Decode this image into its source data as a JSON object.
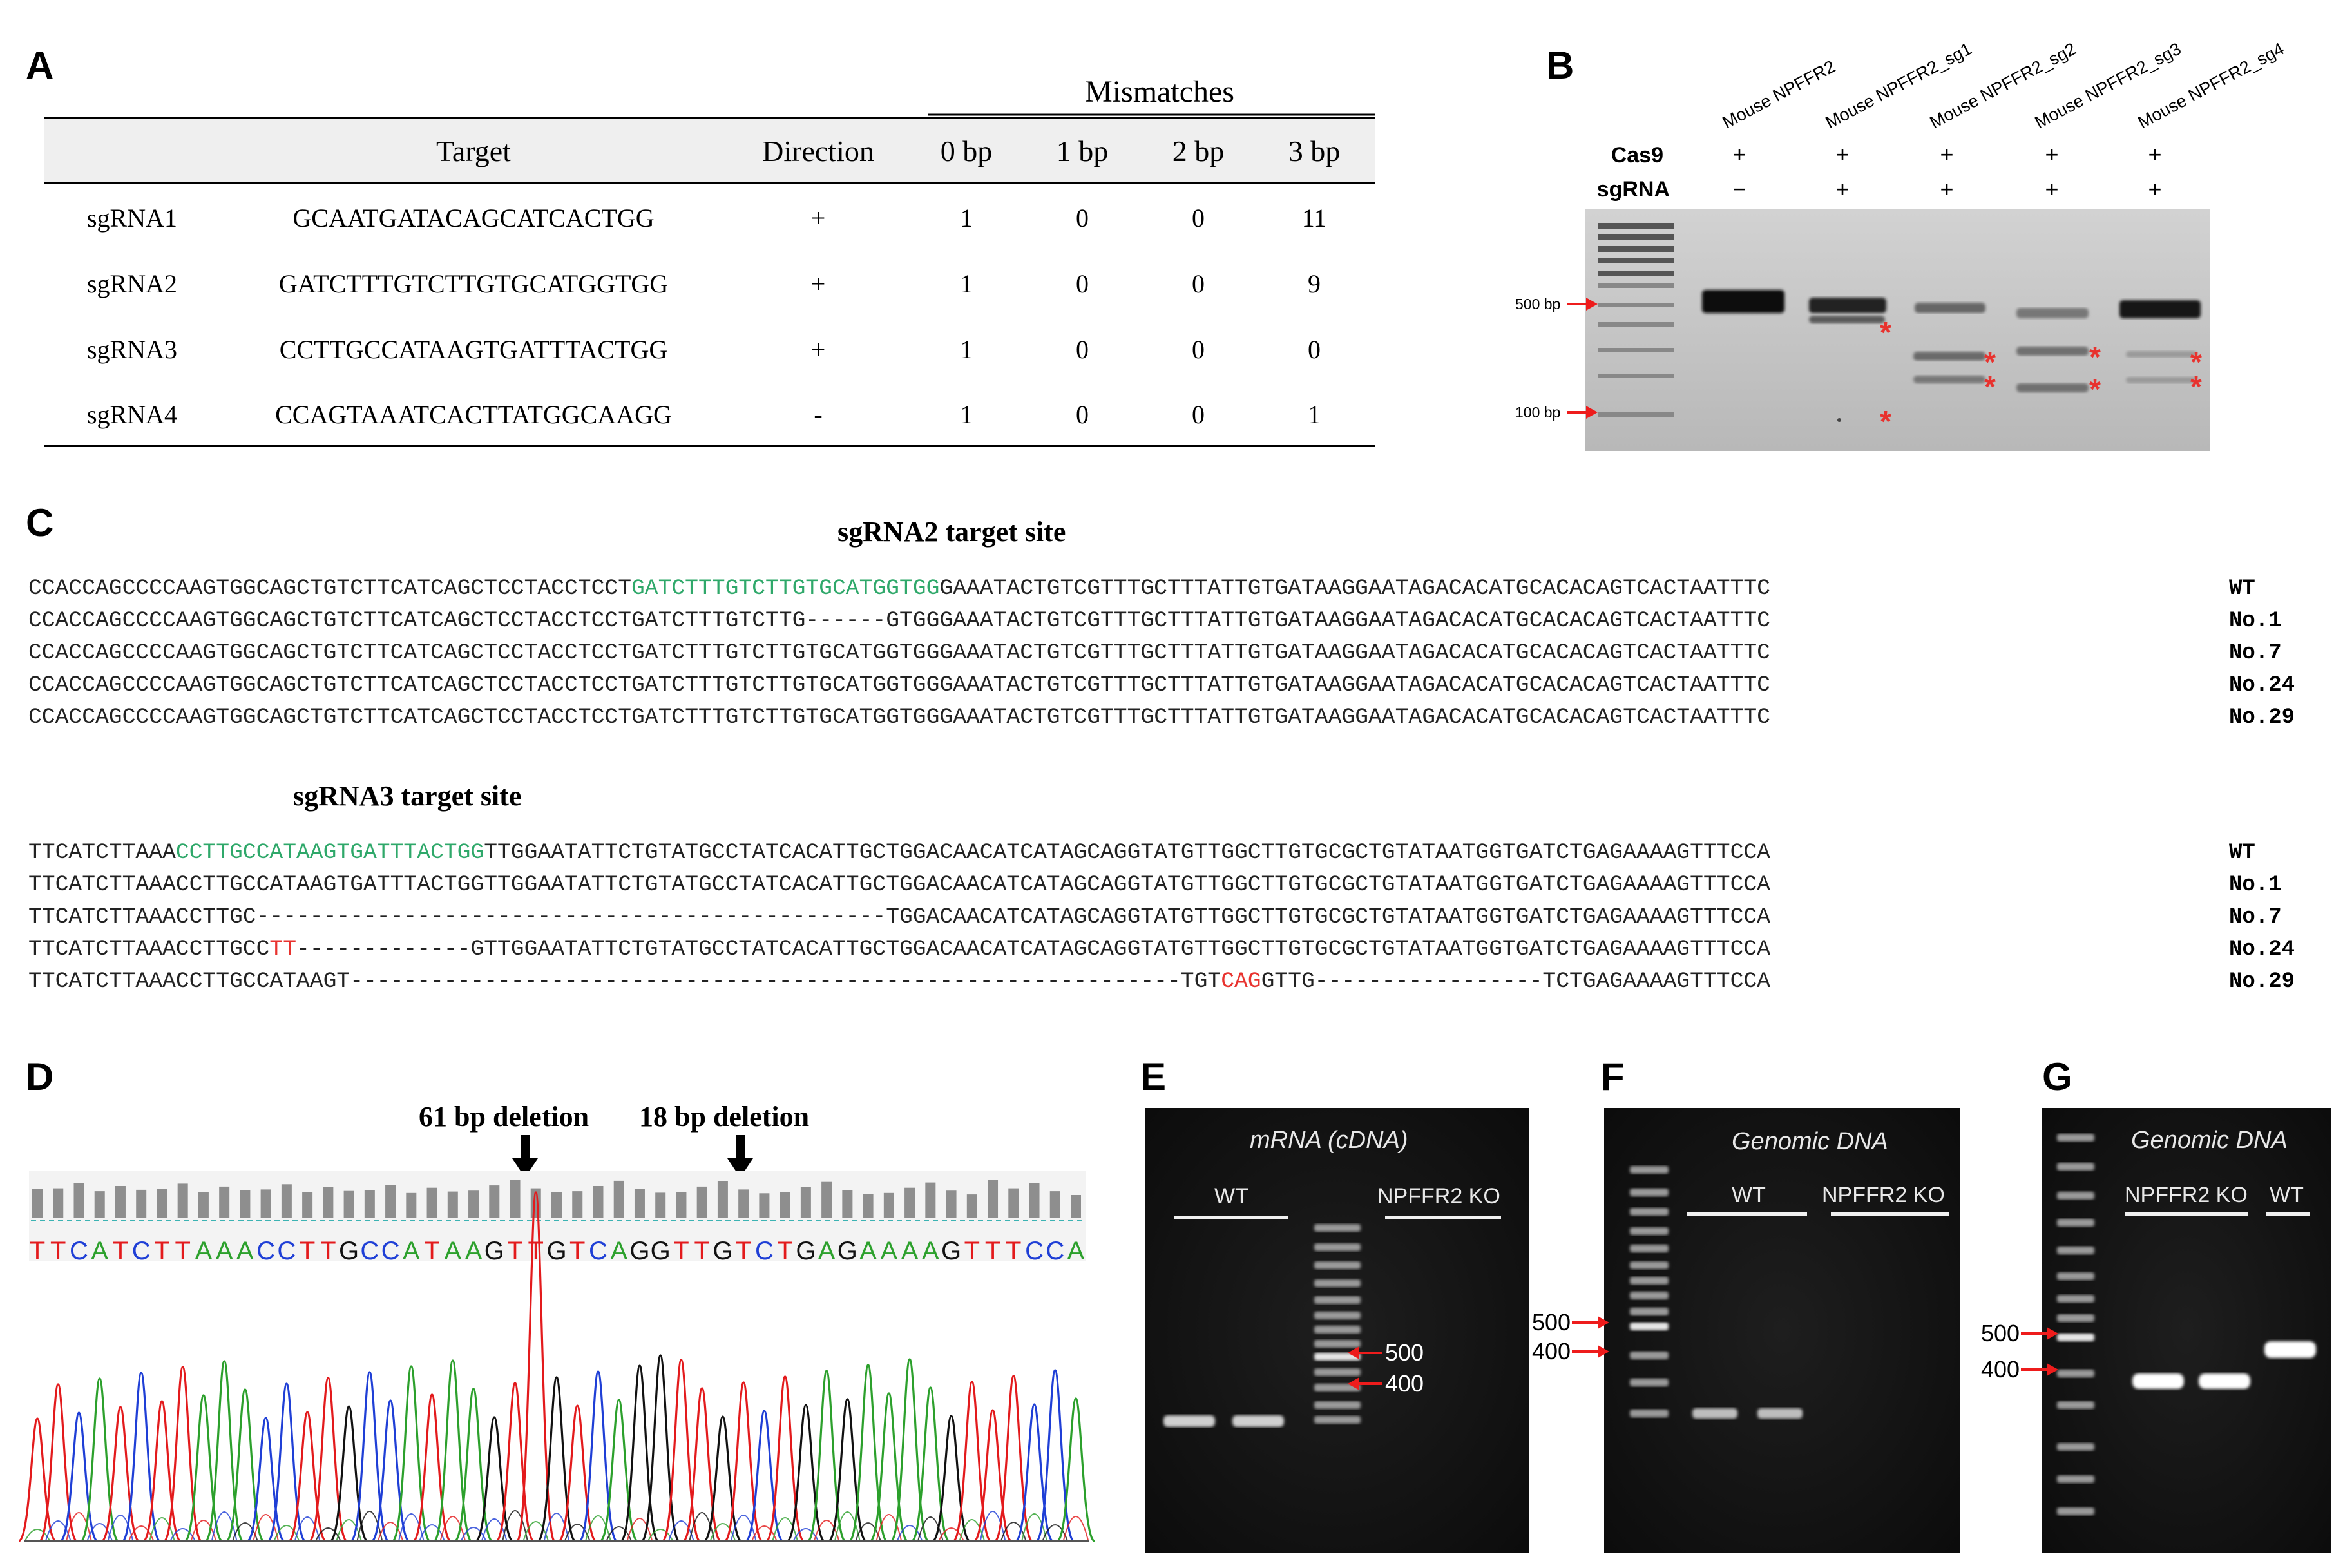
{
  "panels": {
    "A": "A",
    "B": "B",
    "C": "C",
    "D": "D",
    "E": "E",
    "F": "F",
    "G": "G"
  },
  "table": {
    "group_header": "Mismatches",
    "headers": [
      "",
      "Target",
      "Direction",
      "0 bp",
      "1 bp",
      "2 bp",
      "3 bp"
    ],
    "rows": [
      [
        "sgRNA1",
        "GCAATGATACAGCATCACTGG",
        "+",
        "1",
        "0",
        "0",
        "11"
      ],
      [
        "sgRNA2",
        "GATCTTTGTCTTGTGCATGGTGG",
        "+",
        "1",
        "0",
        "0",
        "9"
      ],
      [
        "sgRNA3",
        "CCTTGCCATAAGTGATTTACTGG",
        "+",
        "1",
        "0",
        "0",
        "0"
      ],
      [
        "sgRNA4",
        "CCAGTAAATCACTTATGGCAAGG",
        "-",
        "1",
        "0",
        "0",
        "1"
      ]
    ]
  },
  "gelB": {
    "lanes": [
      "Mouse NPFFR2",
      "Mouse NPFFR2_sg1",
      "Mouse NPFFR2_sg2",
      "Mouse NPFFR2_sg3",
      "Mouse NPFFR2_sg4"
    ],
    "cas9_label": "Cas9",
    "sgrna_label": "sgRNA",
    "cas9": [
      "+",
      "+",
      "+",
      "+",
      "+"
    ],
    "sgrna": [
      "−",
      "+",
      "+",
      "+",
      "+"
    ],
    "markers": [
      "500 bp",
      "100 bp"
    ],
    "asterisk": "*"
  },
  "seq2": {
    "title": "sgRNA2 target site",
    "wt": {
      "pre": "CCACCAGCCCCAAGTGGCAGCTGTCTTCATCAGCTCCTACCTCCT",
      "green": "GATCTTTGTCTTGTGCATGGTGG",
      "post": "GAAATACTGTCGTTTGCTTTATTGTGATAAGGAATAGACACATGCACACAGTCACTAATTTC"
    },
    "rows": [
      "CCACCAGCCCCAAGTGGCAGCTGTCTTCATCAGCTCCTACCTCCTGATCTTTGTCTTG------GTGGGAAATACTGTCGTTTGCTTTATTGTGATAAGGAATAGACACATGCACACAGTCACTAATTTC",
      "CCACCAGCCCCAAGTGGCAGCTGTCTTCATCAGCTCCTACCTCCTGATCTTTGTCTTGTGCATGGTGGGAAATACTGTCGTTTGCTTTATTGTGATAAGGAATAGACACATGCACACAGTCACTAATTTC",
      "CCACCAGCCCCAAGTGGCAGCTGTCTTCATCAGCTCCTACCTCCTGATCTTTGTCTTGTGCATGGTGGGAAATACTGTCGTTTGCTTTATTGTGATAAGGAATAGACACATGCACACAGTCACTAATTTC",
      "CCACCAGCCCCAAGTGGCAGCTGTCTTCATCAGCTCCTACCTCCTGATCTTTGTCTTGTGCATGGTGGGAAATACTGTCGTTTGCTTTATTGTGATAAGGAATAGACACATGCACACAGTCACTAATTTC"
    ],
    "labels": [
      "WT",
      "No.1",
      "No.7",
      "No.24",
      "No.29"
    ]
  },
  "seq3": {
    "title": "sgRNA3 target site",
    "wt": {
      "pre": "TTCATCTTAAA",
      "green": "CCTTGCCATAAGTGATTTACTGG",
      "post": "TTGGAATATTCTGTATGCCTATCACATTGCTGGACAACATCATAGCAGGTATGTTGGCTTGTGCGCTGTATAATGGTGATCTGAGAAAAGTTTCCA"
    },
    "no1": "TTCATCTTAAACCTTGCCATAAGTGATTTACTGGTTGGAATATTCTGTATGCCTATCACATTGCTGGACAACATCATAGCAGGTATGTTGGCTTGTGCGCTGTATAATGGTGATCTGAGAAAAGTTTCCA",
    "no7": "TTCATCTTAAACCTTGC-----------------------------------------------TGGACAACATCATAGCAGGTATGTTGGCTTGTGCGCTGTATAATGGTGATCTGAGAAAAGTTTCCA",
    "no24": {
      "a": "TTCATCTTAAACCTTGCC",
      "red": "TT",
      "b": "-------------GTTGGAATATTCTGTATGCCTATCACATTGCTGGACAACATCATAGCAGGTATGTTGGCTTGTGCGCTGTATAATGGTGATCTGAGAAAAGTTTCCA"
    },
    "no29": {
      "a": "TTCATCTTAAACCTTGCCATAAGT--------------------------------------------------------------TGT",
      "red": "CAG",
      "b": "GTTG-----------------TCTGAGAAAAGTTTCCA"
    },
    "labels": [
      "WT",
      "No.1",
      "No.7",
      "No.24",
      "No.29"
    ]
  },
  "chromatogram": {
    "annot1": "61 bp deletion",
    "annot2": "18 bp deletion",
    "sequence": "TTCATCTTAAACCTTGCCATAAGTTGTCAGGTTGTCTGAGAAAAGTTTCCA"
  },
  "gelE": {
    "title": "mRNA (cDNA)",
    "wt": "WT",
    "ko": "NPFFR2 KO",
    "m500": "500",
    "m400": "400"
  },
  "gelF": {
    "title": "Genomic DNA",
    "wt": "WT",
    "ko": "NPFFR2 KO",
    "m500": "500",
    "m400": "400"
  },
  "gelG": {
    "title": "Genomic DNA",
    "wt": "WT",
    "ko": "NPFFR2 KO",
    "m500": "500",
    "m400": "400"
  },
  "colors": {
    "green": "#2fa86a",
    "red": "#e8322e",
    "arrow": "#ee1c1c"
  }
}
